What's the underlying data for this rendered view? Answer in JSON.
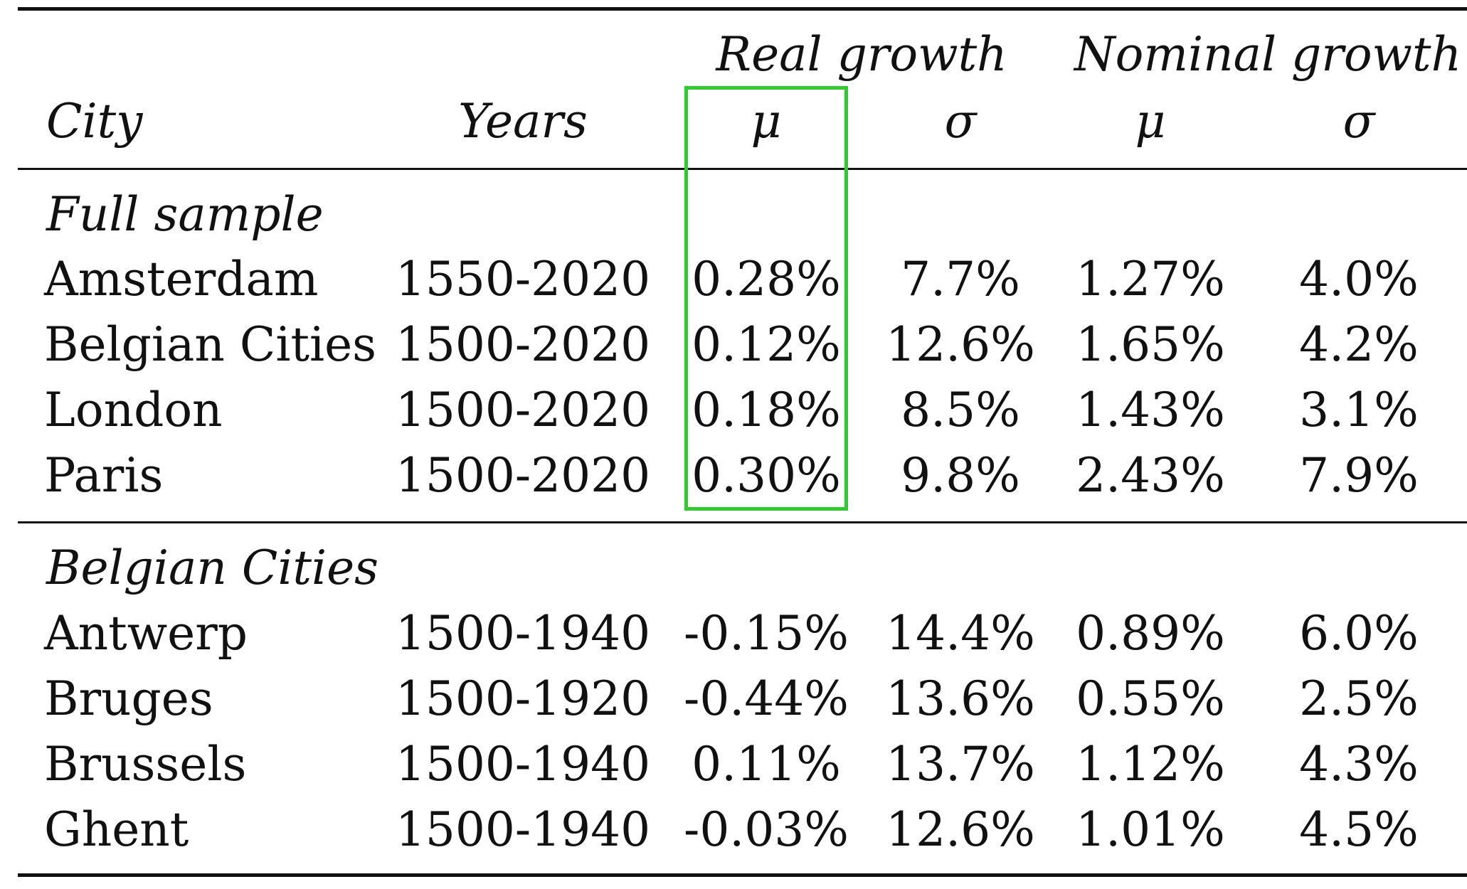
{
  "table": {
    "group_headers": {
      "real": "Real growth",
      "nominal": "Nominal growth"
    },
    "columns": {
      "city": "City",
      "years": "Years",
      "real_mu": "μ",
      "real_sigma": "σ",
      "nominal_mu": "μ",
      "nominal_sigma": "σ"
    },
    "sections": [
      {
        "title": "Full sample",
        "rows": [
          {
            "city": "Amsterdam",
            "years": "1550-2020",
            "real_mu": "0.28%",
            "real_sigma": "7.7%",
            "nominal_mu": "1.27%",
            "nominal_sigma": "4.0%"
          },
          {
            "city": "Belgian Cities",
            "years": "1500-2020",
            "real_mu": "0.12%",
            "real_sigma": "12.6%",
            "nominal_mu": "1.65%",
            "nominal_sigma": "4.2%"
          },
          {
            "city": "London",
            "years": "1500-2020",
            "real_mu": "0.18%",
            "real_sigma": "8.5%",
            "nominal_mu": "1.43%",
            "nominal_sigma": "3.1%"
          },
          {
            "city": "Paris",
            "years": "1500-2020",
            "real_mu": "0.30%",
            "real_sigma": "9.8%",
            "nominal_mu": "2.43%",
            "nominal_sigma": "7.9%"
          }
        ]
      },
      {
        "title": "Belgian Cities",
        "rows": [
          {
            "city": "Antwerp",
            "years": "1500-1940",
            "real_mu": "-0.15%",
            "real_sigma": "14.4%",
            "nominal_mu": "0.89%",
            "nominal_sigma": "6.0%"
          },
          {
            "city": "Bruges",
            "years": "1500-1920",
            "real_mu": "-0.44%",
            "real_sigma": "13.6%",
            "nominal_mu": "0.55%",
            "nominal_sigma": "2.5%"
          },
          {
            "city": "Brussels",
            "years": "1500-1940",
            "real_mu": "0.11%",
            "real_sigma": "13.7%",
            "nominal_mu": "1.12%",
            "nominal_sigma": "4.3%"
          },
          {
            "city": "Ghent",
            "years": "1500-1940",
            "real_mu": "-0.03%",
            "real_sigma": "12.6%",
            "nominal_mu": "1.01%",
            "nominal_sigma": "4.5%"
          }
        ]
      }
    ],
    "highlight_color": "#2ecc2e"
  }
}
